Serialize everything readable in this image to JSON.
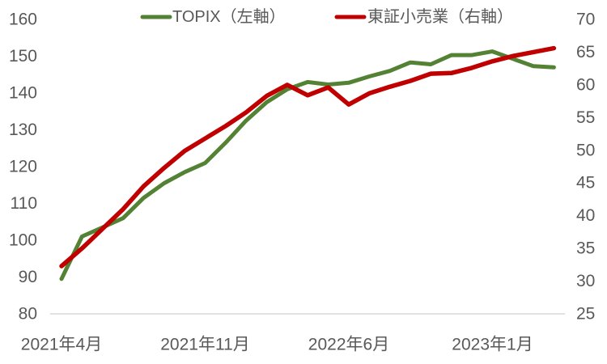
{
  "chart_data": {
    "type": "line",
    "title": "",
    "x": [
      "2021-04",
      "2021-05",
      "2021-06",
      "2021-07",
      "2021-08",
      "2021-09",
      "2021-10",
      "2021-11",
      "2021-12",
      "2022-01",
      "2022-02",
      "2022-03",
      "2022-04",
      "2022-05",
      "2022-06",
      "2022-07",
      "2022-08",
      "2022-09",
      "2022-10",
      "2022-11",
      "2022-12",
      "2023-01",
      "2023-02",
      "2023-03",
      "2023-04"
    ],
    "x_tick_labels": [
      "2021年4月",
      "2021年11月",
      "2022年6月",
      "2023年1月"
    ],
    "x_tick_indices": [
      0,
      7,
      14,
      21
    ],
    "left_axis": {
      "ticks": [
        160,
        150,
        140,
        130,
        120,
        110,
        100,
        90,
        80
      ],
      "range": [
        80,
        160
      ]
    },
    "right_axis": {
      "ticks": [
        70,
        65,
        60,
        55,
        50,
        45,
        40,
        35,
        30,
        25
      ],
      "range": [
        25,
        70
      ]
    },
    "series": [
      {
        "name": "TOPIX（左軸）",
        "axis": "left",
        "color": "#548235",
        "values": [
          89.5,
          101,
          103.5,
          106,
          111.5,
          115.5,
          118.5,
          121,
          126.5,
          132.5,
          137.5,
          141,
          143,
          142.3,
          142.8,
          144.5,
          146,
          148.3,
          147.8,
          150.3,
          150.3,
          151.3,
          149.3,
          147.3,
          147
        ]
      },
      {
        "name": "東証小売業（右軸）",
        "axis": "right",
        "color": "#C00000",
        "values": [
          32.3,
          35,
          38,
          41,
          44.5,
          47.3,
          49.9,
          51.8,
          53.7,
          55.8,
          58.3,
          60,
          58.4,
          59.6,
          57,
          58.7,
          59.7,
          60.6,
          61.7,
          61.8,
          62.6,
          63.6,
          64.4,
          65,
          65.6
        ]
      }
    ],
    "legend_position": "top",
    "grid": "off"
  },
  "colors": {
    "text": "#595959",
    "axis_line": "#D9D9D9"
  }
}
